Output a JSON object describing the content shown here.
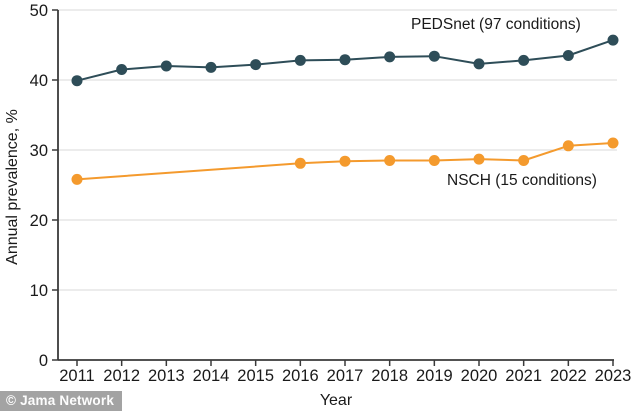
{
  "watermark": {
    "text": "© Jama Network"
  },
  "chart_data": {
    "type": "line",
    "title": "",
    "xlabel": "Year",
    "ylabel": "Annual prevalence, %",
    "ylim": [
      0,
      50
    ],
    "yticks": [
      0,
      10,
      20,
      30,
      40,
      50
    ],
    "grid": true,
    "legend_position": "inline-annotations",
    "axis_color": "#3a3a3a",
    "grid_color": "#d9d9d9",
    "tick_label_color": "#1a1a1a",
    "categories": [
      2011,
      2012,
      2013,
      2014,
      2015,
      2016,
      2017,
      2018,
      2019,
      2020,
      2021,
      2022,
      2023
    ],
    "series": [
      {
        "name": "PEDSnet (97 conditions)",
        "slug": "pedsnet",
        "color": "#2E4D58",
        "values": [
          39.9,
          41.5,
          42.0,
          41.8,
          42.2,
          42.8,
          42.9,
          43.3,
          43.4,
          42.3,
          42.8,
          43.5,
          45.7
        ]
      },
      {
        "name": "NSCH (15 conditions)",
        "slug": "nsch",
        "color": "#F49A2D",
        "values": [
          25.8,
          null,
          null,
          null,
          null,
          28.1,
          28.4,
          28.5,
          28.5,
          28.7,
          28.5,
          30.6,
          31.0
        ]
      }
    ]
  }
}
